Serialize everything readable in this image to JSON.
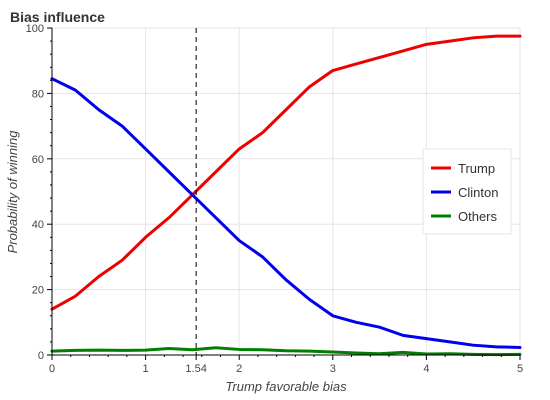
{
  "chart_data": {
    "type": "line",
    "title": "Bias influence",
    "xlabel": "Trump favorable bias",
    "ylabel": "Probability of winning",
    "xlim": [
      0,
      5
    ],
    "ylim": [
      0,
      100
    ],
    "x_ticks": [
      0,
      1,
      1.54,
      2,
      3,
      4,
      5
    ],
    "x_tick_labels": [
      "0",
      "1",
      "1.54",
      "2",
      "3",
      "4",
      "5"
    ],
    "y_ticks": [
      0,
      20,
      40,
      60,
      80,
      100
    ],
    "y_tick_labels": [
      "0",
      "20",
      "40",
      "60",
      "80",
      "100"
    ],
    "grid": true,
    "legend_position": "right",
    "reference_line": {
      "x": 1.54,
      "style": "dashed",
      "color": "#000000"
    },
    "x": [
      0,
      0.25,
      0.5,
      0.75,
      1,
      1.25,
      1.5,
      1.75,
      2,
      2.25,
      2.5,
      2.75,
      3,
      3.25,
      3.5,
      3.75,
      4,
      4.25,
      4.5,
      4.75,
      5
    ],
    "series": [
      {
        "name": "Trump",
        "color": "#ee0000",
        "values": [
          14,
          18,
          24,
          29,
          36,
          42,
          49,
          56,
          63,
          68,
          75,
          82,
          87,
          89,
          91,
          93,
          95,
          96,
          97,
          97.5,
          97.5
        ]
      },
      {
        "name": "Clinton",
        "color": "#0000ee",
        "values": [
          84.5,
          81,
          75,
          70,
          63,
          56,
          49,
          42,
          35,
          30,
          23,
          17,
          12,
          10,
          8.5,
          6,
          5,
          4,
          3,
          2.5,
          2.3
        ]
      },
      {
        "name": "Others",
        "color": "#008000",
        "values": [
          1.2,
          1.4,
          1.5,
          1.4,
          1.5,
          2.0,
          1.6,
          2.2,
          1.7,
          1.6,
          1.3,
          1.2,
          0.9,
          0.6,
          0.4,
          0.8,
          0.3,
          0.4,
          0.2,
          0.1,
          0.2
        ]
      }
    ]
  }
}
